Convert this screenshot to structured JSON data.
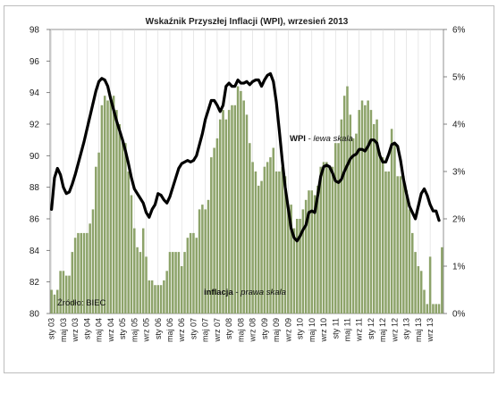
{
  "chart_data": {
    "type": "bar+line",
    "title": "Wskaźnik  Przyszłej Inflacji (WPI), wrzesień 2013",
    "source": "Źródło: BIEC",
    "left_axis": {
      "ylim": [
        80,
        98
      ],
      "ticks": [
        "80",
        "82",
        "84",
        "86",
        "88",
        "90",
        "92",
        "94",
        "96",
        "98"
      ]
    },
    "right_axis": {
      "ylim": [
        0,
        6
      ],
      "ticks": [
        "0%",
        "1%",
        "2%",
        "3%",
        "4%",
        "5%",
        "6%"
      ]
    },
    "grid": "vertical",
    "x_tick_labels": [
      "sty 03",
      "maj 03",
      "wrz 03",
      "sty 04",
      "maj 04",
      "wrz 04",
      "sty 05",
      "maj 05",
      "wrz 05",
      "sty 06",
      "maj 06",
      "wrz 06",
      "sty 07",
      "maj 07",
      "wrz 07",
      "sty 08",
      "maj 08",
      "wrz 08",
      "sty 09",
      "maj 09",
      "wrz 09",
      "sty 10",
      "maj 10",
      "wrz 10",
      "sty 11",
      "maj 11",
      "wrz 11",
      "sty 12",
      "maj 12",
      "wrz 12",
      "sty 13",
      "maj 13",
      "wrz 13"
    ],
    "series": [
      {
        "name_prefix": "WPI",
        "name_suffix": "lewa skala",
        "type": "line",
        "axis": "left",
        "color": "#000000",
        "values": [
          86.6,
          88.6,
          89.2,
          88.8,
          88.0,
          87.6,
          87.7,
          88.2,
          88.8,
          89.5,
          90.2,
          90.9,
          91.7,
          92.5,
          93.3,
          94.1,
          94.7,
          94.9,
          94.8,
          94.4,
          93.6,
          92.9,
          92.2,
          91.6,
          91.0,
          90.3,
          89.5,
          88.6,
          87.9,
          87.6,
          87.3,
          87.0,
          86.4,
          86.1,
          86.6,
          86.9,
          87.6,
          87.5,
          87.2,
          87.0,
          87.4,
          88.0,
          88.6,
          89.2,
          89.5,
          89.6,
          89.7,
          89.6,
          89.7,
          90.0,
          90.7,
          91.4,
          92.3,
          92.9,
          93.5,
          93.5,
          93.2,
          92.8,
          93.2,
          94.4,
          94.6,
          94.4,
          94.4,
          94.8,
          94.6,
          94.6,
          94.7,
          94.5,
          94.7,
          94.8,
          94.8,
          94.4,
          94.8,
          95.1,
          95.2,
          94.7,
          93.4,
          91.6,
          89.7,
          88.0,
          86.7,
          85.4,
          84.8,
          84.6,
          84.9,
          85.3,
          85.6,
          86.4,
          86.5,
          86.4,
          87.5,
          88.7,
          89.3,
          89.4,
          89.3,
          88.9,
          88.4,
          88.3,
          88.5,
          89.0,
          89.4,
          89.8,
          90.0,
          90.1,
          90.4,
          90.4,
          90.3,
          90.6,
          91.0,
          91.0,
          90.8,
          90.0,
          89.6,
          89.6,
          90.1,
          90.7,
          90.8,
          90.6,
          89.7,
          88.5,
          87.6,
          86.8,
          86.4,
          86.0,
          86.8,
          87.6,
          87.9,
          87.5,
          86.9,
          86.5,
          86.5,
          85.9
        ]
      },
      {
        "name_prefix": "inflacja",
        "name_suffix": "prawa skala",
        "type": "bar",
        "axis": "right",
        "color": "#8da36a",
        "values": [
          0.5,
          0.4,
          0.5,
          0.9,
          0.9,
          0.8,
          0.8,
          1.3,
          1.6,
          1.7,
          1.7,
          1.7,
          1.7,
          1.9,
          2.2,
          3.1,
          3.4,
          4.4,
          4.6,
          4.5,
          4.5,
          4.6,
          4.3,
          4.0,
          3.7,
          3.6,
          3.0,
          2.5,
          1.8,
          1.4,
          1.3,
          1.8,
          1.2,
          0.7,
          0.7,
          0.6,
          0.6,
          0.6,
          0.7,
          0.9,
          1.3,
          1.3,
          1.3,
          1.3,
          1.0,
          1.3,
          1.6,
          1.7,
          1.7,
          1.6,
          2.2,
          2.3,
          2.2,
          2.4,
          3.3,
          3.5,
          3.7,
          4.1,
          4.3,
          4.1,
          4.3,
          4.4,
          4.4,
          4.8,
          4.7,
          4.5,
          4.2,
          3.6,
          3.2,
          3.0,
          2.7,
          2.8,
          3.1,
          3.2,
          3.3,
          3.5,
          3.0,
          3.0,
          3.1,
          2.9,
          2.3,
          2.3,
          1.8,
          2.0,
          2.0,
          2.2,
          2.4,
          2.6,
          2.6,
          2.5,
          2.7,
          3.1,
          3.2,
          3.2,
          3.1,
          3.1,
          3.6,
          3.6,
          4.1,
          4.6,
          4.8,
          4.2,
          3.7,
          3.8,
          4.3,
          4.5,
          4.4,
          4.5,
          4.3,
          4.0,
          4.1,
          3.4,
          3.3,
          3.0,
          3.0,
          3.9,
          3.6,
          2.9,
          2.9,
          2.9,
          2.6,
          2.2,
          1.7,
          1.3,
          1.0,
          0.9,
          0.5,
          0.2,
          1.2,
          0.2,
          0.2,
          0.2,
          1.4
        ]
      }
    ]
  }
}
